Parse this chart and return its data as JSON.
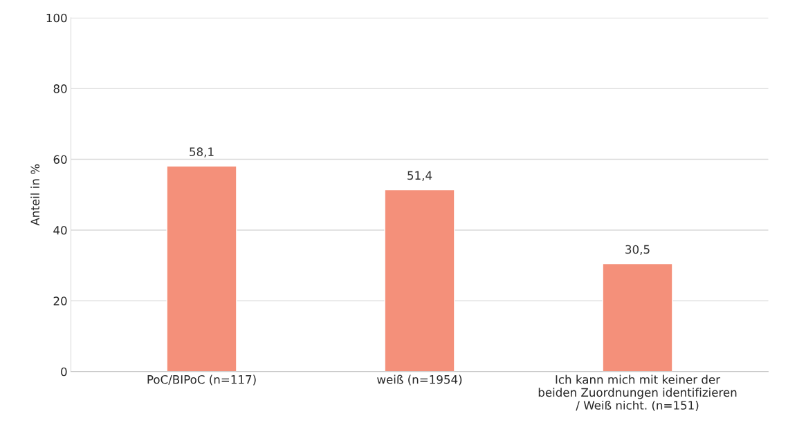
{
  "chart_data": {
    "type": "bar",
    "ylabel": "Anteil in %",
    "categories": [
      "PoC/BIPoC (n=117)",
      "weiß (n=1954)",
      "Ich kann mich mit keiner der\nbeiden Zuordnungen identifizieren\n/ Weiß nicht. (n=151)"
    ],
    "values": [
      58.1,
      51.4,
      30.5
    ],
    "value_labels": [
      "58,1",
      "51,4",
      "30,5"
    ],
    "color": "#f4907a",
    "ylim": [
      0,
      100
    ],
    "yticks": [
      0,
      20,
      40,
      60,
      80,
      100
    ],
    "grid": "y"
  }
}
